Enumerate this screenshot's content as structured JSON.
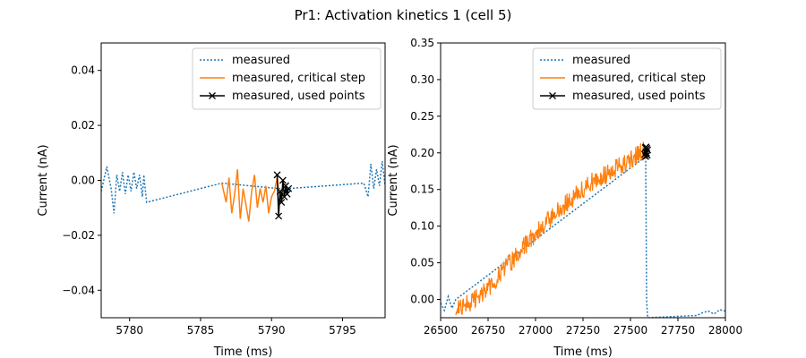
{
  "figure": {
    "title": "Pr1: Activation kinetics 1 (cell 5)"
  },
  "colors": {
    "measured": "#1f77b4",
    "critical": "#ff7f0e",
    "used": "#000000"
  },
  "chart_data": [
    {
      "type": "line",
      "xlabel": "Time (ms)",
      "ylabel": "Current (nA)",
      "xlim": [
        5778,
        5798
      ],
      "ylim": [
        -0.05,
        0.05
      ],
      "xticks": [
        5780,
        5785,
        5790,
        5795
      ],
      "yticks": [
        -0.04,
        -0.02,
        0.0,
        0.02,
        0.04
      ],
      "xtick_labels": [
        "5780",
        "5785",
        "5790",
        "5795"
      ],
      "ytick_labels": [
        "−0.04",
        "−0.02",
        "0.00",
        "0.02",
        "0.04"
      ],
      "legend": {
        "position": "top-right",
        "entries": [
          "measured",
          "measured, critical step",
          "measured, used points"
        ]
      },
      "series": [
        {
          "name": "measured",
          "style": "dotted",
          "x": [
            5778.0,
            5778.4,
            5778.7,
            5778.9,
            5779.1,
            5779.3,
            5779.5,
            5779.7,
            5779.9,
            5780.1,
            5780.3,
            5780.5,
            5780.7,
            5780.9,
            5781.0,
            5781.2,
            5786.5,
            5790.5,
            5791.2,
            5796.5,
            5796.8,
            5797.0,
            5797.2,
            5797.4,
            5797.6,
            5797.8,
            5798.0
          ],
          "y": [
            -0.004,
            0.005,
            -0.003,
            -0.012,
            0.002,
            -0.004,
            0.003,
            -0.005,
            0.002,
            -0.004,
            0.003,
            -0.003,
            0.002,
            -0.006,
            0.002,
            -0.008,
            -0.001,
            -0.003,
            -0.003,
            -0.001,
            -0.006,
            0.006,
            -0.003,
            0.004,
            -0.002,
            0.007,
            -0.002
          ]
        },
        {
          "name": "measured, critical step",
          "style": "solid",
          "x": [
            5786.5,
            5786.8,
            5787.0,
            5787.2,
            5787.4,
            5787.6,
            5787.8,
            5788.0,
            5788.2,
            5788.4,
            5788.6,
            5788.8,
            5789.0,
            5789.2,
            5789.4,
            5789.6,
            5789.8,
            5790.0,
            5790.2,
            5790.4,
            5790.5
          ],
          "y": [
            -0.001,
            -0.008,
            0.001,
            -0.012,
            -0.005,
            0.004,
            -0.014,
            -0.003,
            -0.009,
            -0.015,
            -0.004,
            0.002,
            -0.01,
            -0.003,
            -0.008,
            -0.002,
            -0.012,
            -0.006,
            -0.004,
            0.001,
            -0.003
          ]
        },
        {
          "name": "measured, used points",
          "style": "solid-x",
          "x": [
            5790.4,
            5790.5,
            5790.6,
            5790.7,
            5790.8,
            5790.9,
            5791.0,
            5791.1,
            5791.2
          ],
          "y": [
            0.002,
            -0.013,
            -0.004,
            -0.008,
            0.0,
            -0.006,
            -0.002,
            -0.005,
            -0.003
          ]
        }
      ]
    },
    {
      "type": "line",
      "xlabel": "Time (ms)",
      "ylabel": "Current (nA)",
      "xlim": [
        26500,
        28000
      ],
      "ylim": [
        -0.025,
        0.35
      ],
      "xticks": [
        26500,
        26750,
        27000,
        27250,
        27500,
        27750,
        28000
      ],
      "yticks": [
        0.0,
        0.05,
        0.1,
        0.15,
        0.2,
        0.25,
        0.3,
        0.35
      ],
      "xtick_labels": [
        "26500",
        "26750",
        "27000",
        "27250",
        "27500",
        "27750",
        "28000"
      ],
      "ytick_labels": [
        "0.00",
        "0.05",
        "0.10",
        "0.15",
        "0.20",
        "0.25",
        "0.30",
        "0.35"
      ],
      "legend": {
        "position": "top-right",
        "entries": [
          "measured",
          "measured, critical step",
          "measured, used points"
        ]
      },
      "series": [
        {
          "name": "measured",
          "style": "dotted",
          "x": [
            26500,
            26520,
            26540,
            26560,
            26580,
            27580,
            27585,
            27590,
            27850,
            27880,
            27910,
            27940,
            27970,
            28000
          ],
          "y": [
            -0.005,
            -0.015,
            0.004,
            -0.012,
            0.0,
            0.195,
            0.0,
            -0.025,
            -0.022,
            -0.018,
            -0.016,
            -0.02,
            -0.014,
            -0.016
          ]
        },
        {
          "name": "measured, critical step",
          "style": "solid-noisy",
          "x": [
            26580,
            26650,
            26750,
            26850,
            27000,
            27100,
            27200,
            27300,
            27400,
            27500,
            27570,
            27585
          ],
          "y": [
            -0.01,
            -0.005,
            0.015,
            0.045,
            0.09,
            0.115,
            0.14,
            0.16,
            0.175,
            0.19,
            0.205,
            0.2
          ]
        },
        {
          "name": "measured, used points",
          "style": "solid-x",
          "x": [
            27575,
            27578,
            27580,
            27582,
            27584,
            27586,
            27588,
            27590
          ],
          "y": [
            0.198,
            0.207,
            0.195,
            0.208,
            0.2,
            0.206,
            0.197,
            0.204
          ]
        }
      ]
    }
  ]
}
